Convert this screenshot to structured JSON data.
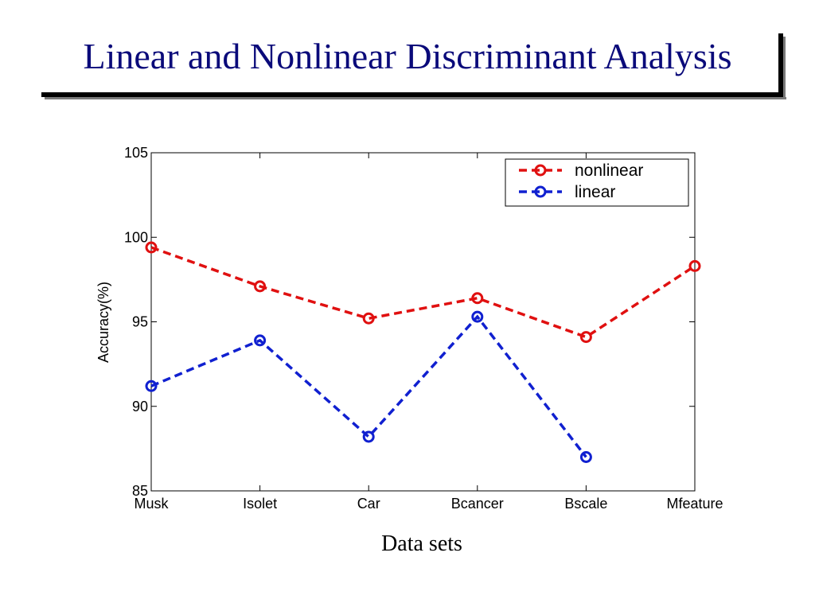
{
  "slide": {
    "title": "Linear and Nonlinear Discriminant Analysis"
  },
  "chart_data": {
    "type": "line",
    "categories": [
      "Musk",
      "Isolet",
      "Car",
      "Bcancer",
      "Bscale",
      "Mfeature"
    ],
    "series": [
      {
        "name": "nonlinear",
        "color": "#e01010",
        "line_style": "dashed",
        "marker": "circle",
        "values": [
          99.4,
          97.1,
          95.2,
          96.4,
          94.1,
          98.3
        ]
      },
      {
        "name": "linear",
        "color": "#1020d0",
        "line_style": "dashed",
        "marker": "circle",
        "values": [
          91.2,
          93.9,
          88.2,
          95.3,
          87.0,
          null
        ]
      }
    ],
    "xlabel": "Data sets",
    "ylabel": "Accuracy(%)",
    "ylim": [
      85,
      105
    ],
    "yticks": [
      85,
      90,
      95,
      100,
      105
    ],
    "grid": false,
    "legend_position": "top-right"
  }
}
